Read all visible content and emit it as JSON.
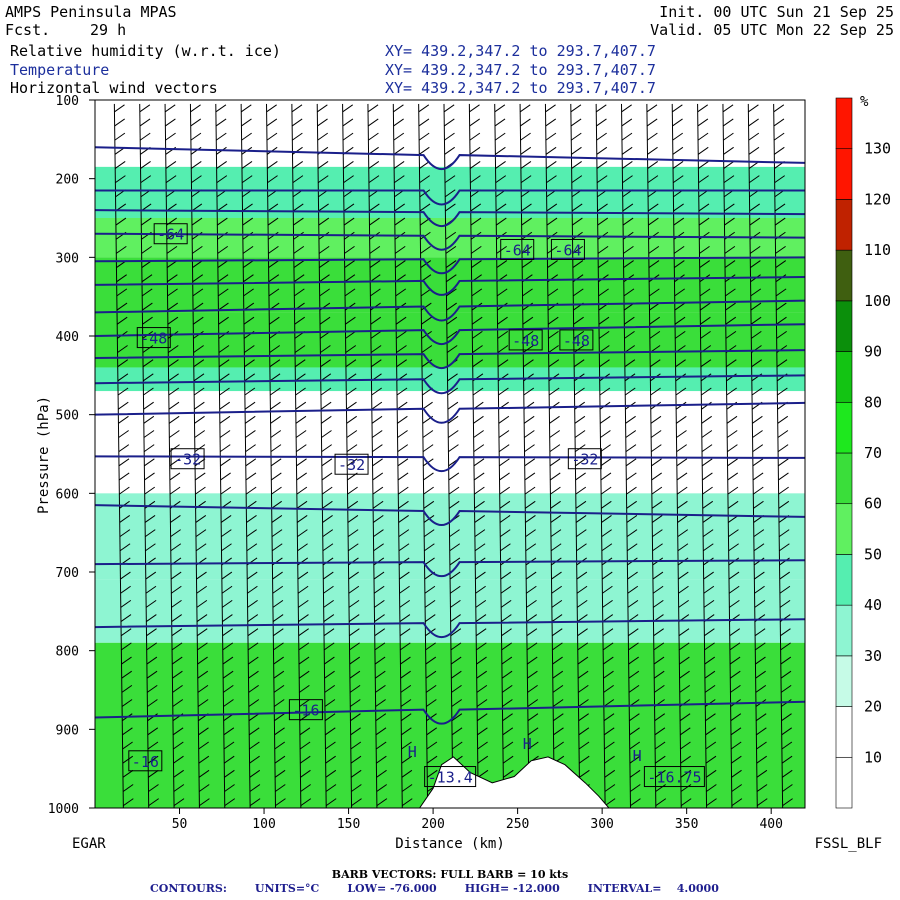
{
  "header": {
    "model": "AMPS Peninsula MPAS",
    "fcst_label": "Fcst.",
    "fcst_value": "29 h",
    "init": "Init. 00 UTC Sun 21 Sep 25",
    "valid": "Valid. 05 UTC Mon 22 Sep 25",
    "fields": [
      {
        "name": "Relative humidity (w.r.t. ice)",
        "xy": "XY= 439.2,347.2 to 293.7,407.7"
      },
      {
        "name": "Temperature",
        "xy": "XY= 439.2,347.2 to 293.7,407.7"
      },
      {
        "name": "Horizontal wind vectors",
        "xy": "XY= 439.2,347.2 to 293.7,407.7"
      }
    ]
  },
  "chart_data": {
    "type": "heatmap",
    "xlabel": "Distance (km)",
    "ylabel": "Pressure (hPa)",
    "xlim": [
      0,
      420
    ],
    "ylim": [
      1000,
      100
    ],
    "x_ticks": [
      50,
      100,
      150,
      200,
      250,
      300,
      350,
      400
    ],
    "y_ticks": [
      100,
      200,
      300,
      400,
      500,
      600,
      700,
      800,
      900,
      1000
    ],
    "left_endpoint": "EGAR",
    "right_endpoint": "FSSL_BLF",
    "colorbar": {
      "unit": "%",
      "levels": [
        10,
        20,
        30,
        40,
        50,
        60,
        70,
        80,
        90,
        100,
        110,
        120,
        130
      ],
      "colors": [
        "#ffffff",
        "#ffffff",
        "#c6fbe7",
        "#8ef5d2",
        "#55eeb0",
        "#60f060",
        "#3ade3a",
        "#1ee81e",
        "#13c413",
        "#0b8f0b",
        "#3f5f10",
        "#c02200",
        "#ff1500",
        "#ff1500"
      ]
    },
    "rh_bands": [
      {
        "p_top": 185,
        "p_bottom": 250,
        "value": 45
      },
      {
        "p_top": 250,
        "p_bottom": 300,
        "value": 55
      },
      {
        "p_top": 300,
        "p_bottom": 370,
        "value": 60
      },
      {
        "p_top": 370,
        "p_bottom": 440,
        "value": 62
      },
      {
        "p_top": 440,
        "p_bottom": 470,
        "value": 40
      },
      {
        "p_top": 600,
        "p_bottom": 710,
        "value": 35
      },
      {
        "p_top": 710,
        "p_bottom": 790,
        "value": 38
      },
      {
        "p_top": 790,
        "p_bottom": 1000,
        "value": 65
      }
    ],
    "temperature_contours": {
      "units": "°C",
      "low": -76,
      "high": -12,
      "interval": 4,
      "labels": [
        {
          "text": "-64",
          "x": 35,
          "p": 270
        },
        {
          "text": "-64",
          "x": 240,
          "p": 290
        },
        {
          "text": "-64",
          "x": 270,
          "p": 290
        },
        {
          "text": "-48",
          "x": 25,
          "p": 402
        },
        {
          "text": "-48",
          "x": 245,
          "p": 405
        },
        {
          "text": "-48",
          "x": 275,
          "p": 405
        },
        {
          "text": "-32",
          "x": 45,
          "p": 556
        },
        {
          "text": "-32",
          "x": 142,
          "p": 563
        },
        {
          "text": "-32",
          "x": 280,
          "p": 556
        },
        {
          "text": "-16",
          "x": 115,
          "p": 875
        },
        {
          "text": "-16",
          "x": 20,
          "p": 940
        },
        {
          "text": "-13.4",
          "x": 195,
          "p": 960
        },
        {
          "text": "-16.75",
          "x": 325,
          "p": 960
        }
      ],
      "levels": [
        {
          "p": 160,
          "p_right": 180
        },
        {
          "p": 215,
          "p_right": 215
        },
        {
          "p": 240,
          "p_right": 245
        },
        {
          "p": 270,
          "p_right": 275
        },
        {
          "p": 305,
          "p_right": 300
        },
        {
          "p": 335,
          "p_right": 325
        },
        {
          "p": 370,
          "p_right": 355
        },
        {
          "p": 400,
          "p_right": 385
        },
        {
          "p": 428,
          "p_right": 418
        },
        {
          "p": 460,
          "p_right": 450
        },
        {
          "p": 500,
          "p_right": 485
        },
        {
          "p": 553,
          "p_right": 555
        },
        {
          "p": 615,
          "p_right": 630
        },
        {
          "p": 690,
          "p_right": 685
        },
        {
          "p": 770,
          "p_right": 760
        },
        {
          "p": 885,
          "p_right": 865
        }
      ]
    },
    "highs": [
      {
        "text": "H",
        "x": 185,
        "p": 935
      },
      {
        "text": "H",
        "x": 253,
        "p": 925
      },
      {
        "text": "H",
        "x": 318,
        "p": 940
      }
    ],
    "terrain": [
      [
        0,
        1000
      ],
      [
        180,
        1000
      ],
      [
        192,
        1000
      ],
      [
        200,
        975
      ],
      [
        205,
        945
      ],
      [
        212,
        935
      ],
      [
        222,
        955
      ],
      [
        235,
        968
      ],
      [
        248,
        960
      ],
      [
        258,
        940
      ],
      [
        268,
        935
      ],
      [
        278,
        945
      ],
      [
        290,
        968
      ],
      [
        298,
        985
      ],
      [
        304,
        1000
      ],
      [
        420,
        1000
      ]
    ],
    "wind_barbs": {
      "x_spacing_km": 15,
      "description": "Full barb = 10 kts"
    }
  },
  "footer": {
    "barb_note": "BARB VECTORS:  FULL BARB = 10 kts",
    "contours_label": "CONTOURS:",
    "units_text": "UNITS=°C",
    "low_text": "LOW= -76.000",
    "high_text": "HIGH= -12.000",
    "interval_text": "INTERVAL=    4.0000"
  }
}
